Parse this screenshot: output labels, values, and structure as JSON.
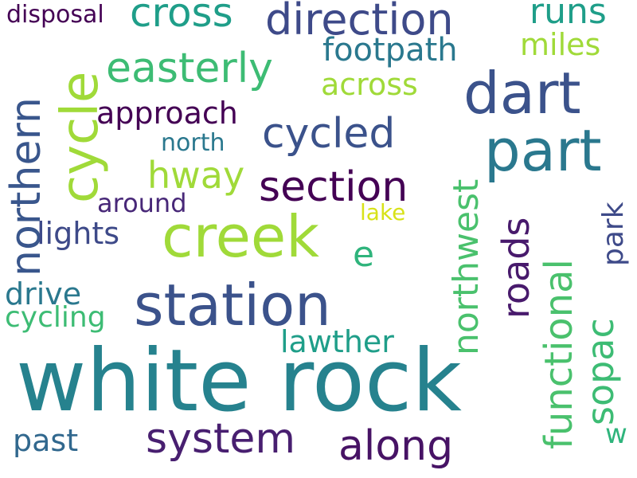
{
  "words": [
    {
      "text": "white rock",
      "color": "#26828e",
      "vertical": false
    },
    {
      "text": "station",
      "color": "#3b528b",
      "vertical": false
    },
    {
      "text": "creek",
      "color": "#a0da39",
      "vertical": false
    },
    {
      "text": "part",
      "color": "#2a788e",
      "vertical": false
    },
    {
      "text": "dart",
      "color": "#3b528b",
      "vertical": false
    },
    {
      "text": "cycle",
      "color": "#a0da39",
      "vertical": true
    },
    {
      "text": "direction",
      "color": "#3e4a89",
      "vertical": false
    },
    {
      "text": "cross",
      "color": "#1f9e89",
      "vertical": false
    },
    {
      "text": "easterly",
      "color": "#3dbc74",
      "vertical": false
    },
    {
      "text": "system",
      "color": "#481f70",
      "vertical": false
    },
    {
      "text": "along",
      "color": "#471365",
      "vertical": false
    },
    {
      "text": "section",
      "color": "#440154",
      "vertical": false
    },
    {
      "text": "cycled",
      "color": "#3b528b",
      "vertical": false
    },
    {
      "text": "northern",
      "color": "#39568c",
      "vertical": true
    },
    {
      "text": "northwest",
      "color": "#4ac16d",
      "vertical": true
    },
    {
      "text": "functional",
      "color": "#4ac16d",
      "vertical": true
    },
    {
      "text": "roads",
      "color": "#481a6c",
      "vertical": true
    },
    {
      "text": "sopac",
      "color": "#3dbc74",
      "vertical": true
    },
    {
      "text": "hway",
      "color": "#a0da39",
      "vertical": false
    },
    {
      "text": "approach",
      "color": "#440154",
      "vertical": false
    },
    {
      "text": "footpath",
      "color": "#2a788e",
      "vertical": false
    },
    {
      "text": "runs",
      "color": "#1f9e89",
      "vertical": false
    },
    {
      "text": "lights",
      "color": "#3e4a89",
      "vertical": false
    },
    {
      "text": "miles",
      "color": "#a0da39",
      "vertical": false
    },
    {
      "text": "across",
      "color": "#a0da39",
      "vertical": false
    },
    {
      "text": "lawther",
      "color": "#1f9e89",
      "vertical": false
    },
    {
      "text": "e",
      "color": "#2fb47c",
      "vertical": false
    },
    {
      "text": "drive",
      "color": "#2a788e",
      "vertical": false
    },
    {
      "text": "cycling",
      "color": "#3dbc74",
      "vertical": false
    },
    {
      "text": "park",
      "color": "#3e4a89",
      "vertical": true
    },
    {
      "text": "past",
      "color": "#31688e",
      "vertical": false
    },
    {
      "text": "around",
      "color": "#482878",
      "vertical": false
    },
    {
      "text": "north",
      "color": "#2a788e",
      "vertical": false
    },
    {
      "text": "disposal",
      "color": "#440154",
      "vertical": false
    },
    {
      "text": "lake",
      "color": "#d8e219",
      "vertical": false
    },
    {
      "text": "w",
      "color": "#2fb47c",
      "vertical": false
    }
  ]
}
